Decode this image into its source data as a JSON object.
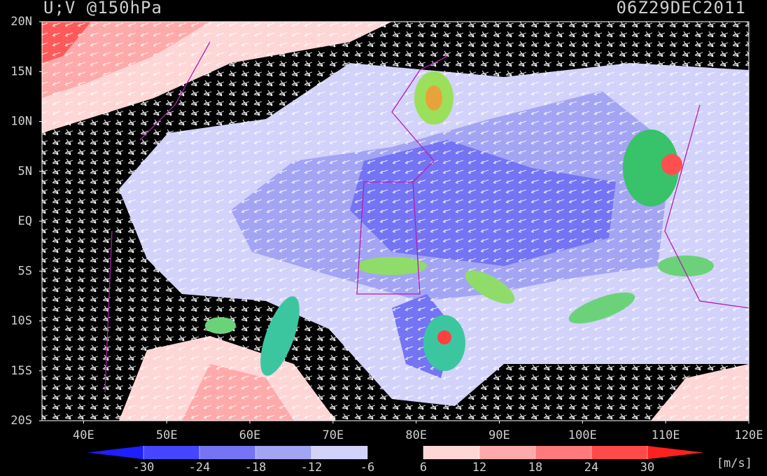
{
  "header": {
    "title": "U;V @150hPa",
    "timestamp": "06Z29DEC2011"
  },
  "map": {
    "lat_labels": [
      "20N",
      "15N",
      "10N",
      "5N",
      "EQ",
      "5S",
      "10S",
      "15S",
      "20S"
    ],
    "lon_labels": [
      "40E",
      "50E",
      "60E",
      "70E",
      "80E",
      "90E",
      "100E",
      "110E",
      "120E"
    ]
  },
  "colorbar": {
    "ticks": [
      -30,
      -24,
      -18,
      -12,
      -6,
      6,
      12,
      18,
      24,
      30
    ],
    "colors": [
      "#1e1eff",
      "#4646ff",
      "#7474f4",
      "#a4a4f4",
      "#d2d2fa",
      "#000000",
      "#ffd6d6",
      "#ffaaaa",
      "#ff7a7a",
      "#ff4a4a",
      "#ff2020"
    ],
    "unit": "[m/s]"
  }
}
